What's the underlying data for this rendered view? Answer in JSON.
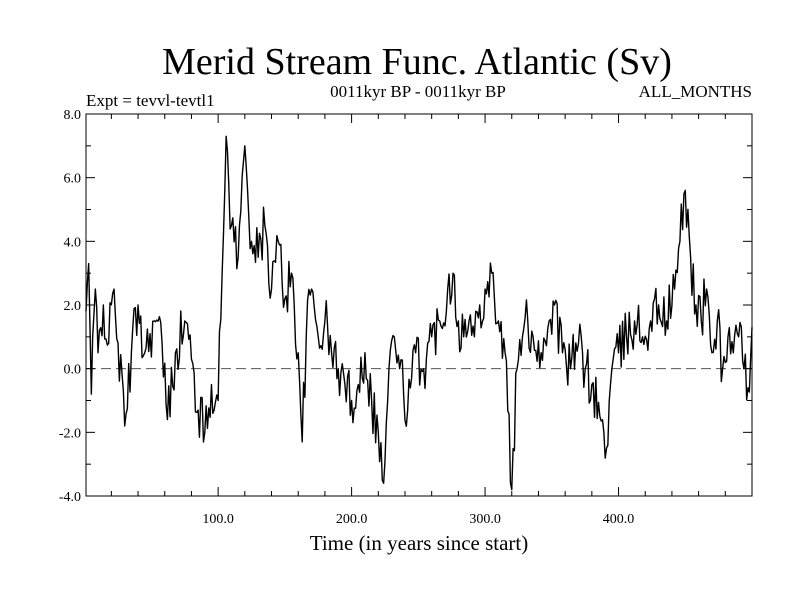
{
  "chart_data": {
    "type": "line",
    "title": "Merid Stream Func. Atlantic (Sv)",
    "subtitle_left": "Expt = tevvl-tevtl1",
    "subtitle_center": "0011kyr BP - 0011kyr BP",
    "subtitle_right": "ALL_MONTHS",
    "xlabel": "Time (in years since start)",
    "ylabel": "",
    "xlim": [
      1,
      500
    ],
    "ylim": [
      -4.0,
      8.0
    ],
    "x_ticks": [
      100,
      200,
      300,
      400
    ],
    "x_tick_labels": [
      "100.0",
      "200.0",
      "300.0",
      "400.0"
    ],
    "y_ticks": [
      -4,
      -2,
      0,
      2,
      4,
      6,
      8
    ],
    "y_tick_labels": [
      "-4.0",
      "-2.0",
      "0.0",
      "2.0",
      "4.0",
      "6.0",
      "8.0"
    ],
    "zero_line": "dashed",
    "series": [
      {
        "name": "tevvl-tevtl1",
        "x_start": 1,
        "x_step": 1,
        "keypoints": [
          [
            1,
            1.8
          ],
          [
            3,
            3.3
          ],
          [
            5,
            -0.8
          ],
          [
            8,
            2.5
          ],
          [
            10,
            0.5
          ],
          [
            14,
            2.0
          ],
          [
            18,
            0.8
          ],
          [
            22,
            2.5
          ],
          [
            25,
            0.8
          ],
          [
            30,
            -1.8
          ],
          [
            35,
            0.5
          ],
          [
            40,
            2.0
          ],
          [
            45,
            0.5
          ],
          [
            52,
            1.5
          ],
          [
            58,
            0.8
          ],
          [
            62,
            -1.6
          ],
          [
            68,
            0.5
          ],
          [
            75,
            1.5
          ],
          [
            80,
            0.3
          ],
          [
            85,
            -1.3
          ],
          [
            90,
            -2.0
          ],
          [
            95,
            -0.5
          ],
          [
            100,
            -1.0
          ],
          [
            103,
            3.0
          ],
          [
            106,
            7.3
          ],
          [
            110,
            4.5
          ],
          [
            115,
            3.5
          ],
          [
            120,
            7.0
          ],
          [
            125,
            4.0
          ],
          [
            130,
            3.5
          ],
          [
            135,
            4.5
          ],
          [
            140,
            2.5
          ],
          [
            145,
            4.0
          ],
          [
            150,
            2.2
          ],
          [
            155,
            3.0
          ],
          [
            160,
            0.5
          ],
          [
            163,
            -2.3
          ],
          [
            166,
            1.0
          ],
          [
            170,
            2.5
          ],
          [
            175,
            1.0
          ],
          [
            180,
            1.5
          ],
          [
            185,
            0.5
          ],
          [
            190,
            0.0
          ],
          [
            195,
            -0.5
          ],
          [
            200,
            -1.0
          ],
          [
            205,
            -0.5
          ],
          [
            210,
            0.5
          ],
          [
            215,
            -1.0
          ],
          [
            220,
            -2.0
          ],
          [
            224,
            -3.6
          ],
          [
            228,
            0.0
          ],
          [
            232,
            1.0
          ],
          [
            236,
            0.0
          ],
          [
            242,
            -1.3
          ],
          [
            248,
            0.5
          ],
          [
            254,
            0.0
          ],
          [
            260,
            1.0
          ],
          [
            266,
            1.5
          ],
          [
            272,
            2.5
          ],
          [
            276,
            3.0
          ],
          [
            280,
            1.5
          ],
          [
            284,
            1.0
          ],
          [
            288,
            1.5
          ],
          [
            292,
            1.0
          ],
          [
            296,
            2.0
          ],
          [
            300,
            2.5
          ],
          [
            305,
            3.0
          ],
          [
            310,
            1.5
          ],
          [
            315,
            0.5
          ],
          [
            320,
            -3.8
          ],
          [
            324,
            0.0
          ],
          [
            328,
            1.0
          ],
          [
            332,
            1.5
          ],
          [
            336,
            1.0
          ],
          [
            342,
            0.5
          ],
          [
            348,
            1.5
          ],
          [
            352,
            2.0
          ],
          [
            358,
            0.5
          ],
          [
            364,
            0.0
          ],
          [
            370,
            0.8
          ],
          [
            375,
            0.0
          ],
          [
            380,
            -0.5
          ],
          [
            386,
            -1.5
          ],
          [
            391,
            -2.5
          ],
          [
            395,
            0.0
          ],
          [
            400,
            0.5
          ],
          [
            406,
            1.0
          ],
          [
            412,
            1.5
          ],
          [
            418,
            1.0
          ],
          [
            424,
            1.5
          ],
          [
            430,
            2.0
          ],
          [
            436,
            1.5
          ],
          [
            442,
            2.5
          ],
          [
            446,
            4.0
          ],
          [
            450,
            5.6
          ],
          [
            454,
            3.5
          ],
          [
            458,
            2.0
          ],
          [
            462,
            1.5
          ],
          [
            466,
            2.5
          ],
          [
            470,
            0.5
          ],
          [
            474,
            1.5
          ],
          [
            478,
            0.0
          ],
          [
            482,
            1.0
          ],
          [
            486,
            0.5
          ],
          [
            490,
            1.0
          ],
          [
            494,
            0.0
          ],
          [
            497,
            -0.6
          ],
          [
            500,
            1.3
          ]
        ],
        "noise_amplitude": 0.85,
        "seed": 42
      }
    ]
  }
}
